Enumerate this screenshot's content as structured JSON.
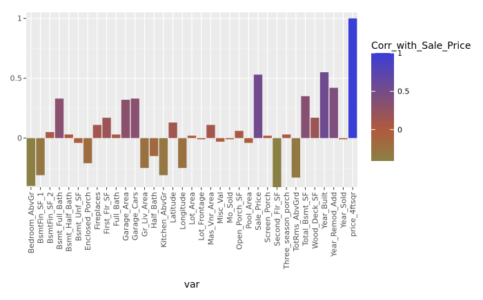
{
  "chart_data": {
    "type": "bar",
    "xlabel": "var",
    "ylabel": "",
    "ylim": [
      -0.41,
      1.05
    ],
    "y_ticks": [
      0,
      0.5,
      1
    ],
    "y_tick_labels": [
      "0",
      "0.5",
      "1"
    ],
    "grid": true,
    "categories": [
      "Bedroom_AbvGr",
      "BsmtFin_SF_1",
      "BsmtFin_SF_2",
      "Bsmt_Full_Bath",
      "Bsmt_Half_Bath",
      "Bsmt_Unf_SF",
      "Enclosed_Porch",
      "Fireplaces",
      "First_Flr_SF",
      "Full_Bath",
      "Garage_Area",
      "Garage_Cars",
      "Gr_Liv_Area",
      "Half_Bath",
      "Kitchen_AbvGr",
      "Latitude",
      "Longitude",
      "Lot_Area",
      "Lot_Frontage",
      "Mas_Vnr_Area",
      "Misc_Val",
      "Mo_Sold",
      "Open_Porch_SF",
      "Pool_Area",
      "Sale_Price",
      "Screen_Porch",
      "Second_Flr_SF",
      "Three_season_porch",
      "TotRms_AbvGrd",
      "Total_Bsmt_SF",
      "Wood_Deck_SF",
      "Year_Built",
      "Year_Remod_Add",
      "Year_Sold",
      "price_4ftsqr"
    ],
    "values": [
      -0.4,
      -0.31,
      0.05,
      0.33,
      0.03,
      -0.04,
      -0.21,
      0.11,
      0.17,
      0.03,
      0.32,
      0.33,
      -0.25,
      -0.15,
      -0.31,
      0.13,
      -0.25,
      0.02,
      -0.01,
      0.11,
      -0.03,
      -0.01,
      0.06,
      -0.04,
      0.53,
      0.02,
      -0.41,
      0.03,
      -0.33,
      0.35,
      0.17,
      0.55,
      0.42,
      -0.01,
      1.0
    ],
    "legend": {
      "title": "Corr_with_Sale_Price",
      "placement": "right",
      "ticks": [
        0,
        0.5,
        1
      ],
      "tick_labels": [
        "0",
        "0.5",
        "1"
      ],
      "range": [
        -0.41,
        1.0
      ],
      "colors": {
        "low": "#8b8044",
        "mid": "#b05a3c",
        "high": "#3a3dd6"
      }
    },
    "colors": {
      "panel": "#ebebeb",
      "grid_major": "#ffffff",
      "grid_minor": "#f5f5f5"
    }
  }
}
